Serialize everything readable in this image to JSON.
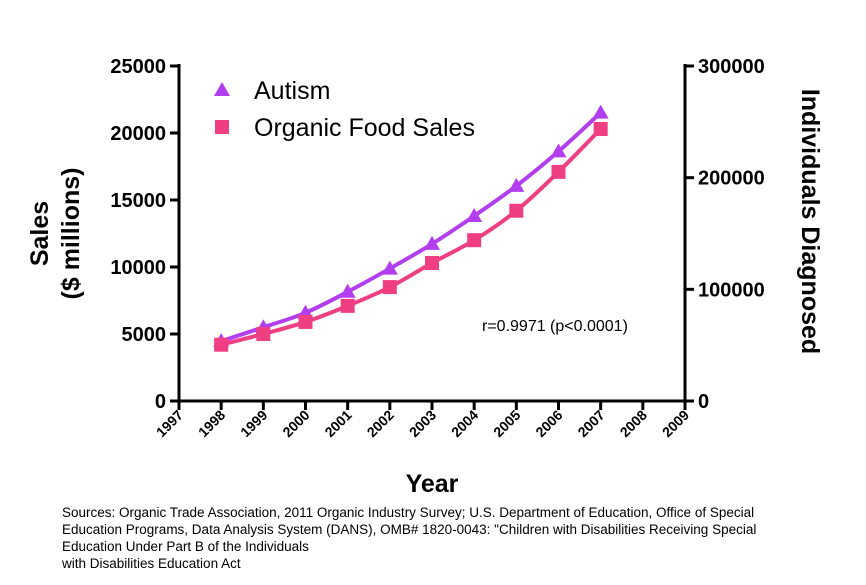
{
  "chart_data": {
    "type": "line",
    "x": [
      1998,
      1999,
      2000,
      2001,
      2002,
      2003,
      2004,
      2005,
      2006,
      2007
    ],
    "xlabel": "Year",
    "xlim": [
      1997,
      2009
    ],
    "xticks": [
      "1997",
      "1998",
      "1999",
      "2000",
      "2001",
      "2002",
      "2003",
      "2004",
      "2005",
      "2006",
      "2007",
      "2008",
      "2009"
    ],
    "ylabel_lines": [
      "Sales",
      "($ millions)"
    ],
    "ylim": [
      0,
      25000
    ],
    "yticks": [
      "0",
      "5000",
      "10000",
      "15000",
      "20000",
      "25000"
    ],
    "y2label": "Individuals Diagnosed",
    "y2lim": [
      0,
      300000
    ],
    "y2ticks": [
      "0",
      "100000",
      "200000",
      "300000"
    ],
    "series": [
      {
        "name": "Autism",
        "axis": "right",
        "marker": "triangle",
        "color": "#b23ef0",
        "values": [
          53600,
          66000,
          79000,
          97800,
          118600,
          140700,
          165700,
          192600,
          223500,
          258200
        ]
      },
      {
        "name": "Organic Food Sales",
        "axis": "left",
        "marker": "square",
        "color": "#f03e82",
        "values": [
          4200,
          5000,
          5900,
          7100,
          8500,
          10300,
          12000,
          14200,
          17100,
          20300
        ]
      }
    ],
    "legend_position": "top-left",
    "annotation": "r=0.9971 (p<0.0001)",
    "grid": false
  },
  "sources": [
    "Sources: Organic Trade Association,  2011 Organic Industry Survey; U.S. Department of Education, Office of Special",
    "Education Programs, Data Analysis System (DANS), OMB# 1820-0043: \"Children with Disabilities Receiving Special",
    "Education Under Part B of the Individuals",
    "with Disabilities Education Act"
  ]
}
